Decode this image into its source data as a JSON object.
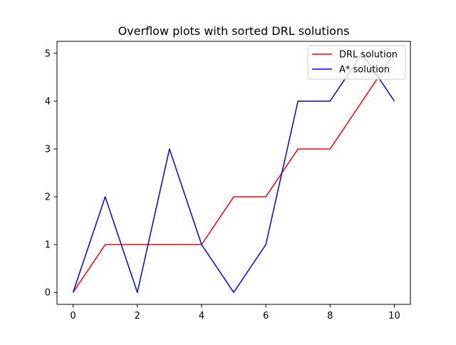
{
  "chart_data": {
    "type": "line",
    "title": "Overflow plots with sorted DRL solutions",
    "xlabel": "",
    "ylabel": "",
    "xlim": [
      -0.5,
      10.5
    ],
    "ylim": [
      -0.25,
      5.25
    ],
    "x_ticks": [
      0,
      2,
      4,
      6,
      8,
      10
    ],
    "y_ticks": [
      0,
      1,
      2,
      3,
      4,
      5
    ],
    "grid": false,
    "legend_position": "top-right",
    "x": [
      0,
      1,
      2,
      3,
      4,
      5,
      6,
      7,
      8,
      9,
      10
    ],
    "series": [
      {
        "name": "DRL solution",
        "color": "#ff0000",
        "values": [
          0,
          1,
          1,
          1,
          1,
          2,
          2,
          3,
          3,
          4,
          5
        ]
      },
      {
        "name": "A* solution",
        "color": "#0000ff",
        "values": [
          0,
          2,
          0,
          3,
          1,
          0,
          1,
          4,
          4,
          5,
          4
        ]
      }
    ]
  }
}
